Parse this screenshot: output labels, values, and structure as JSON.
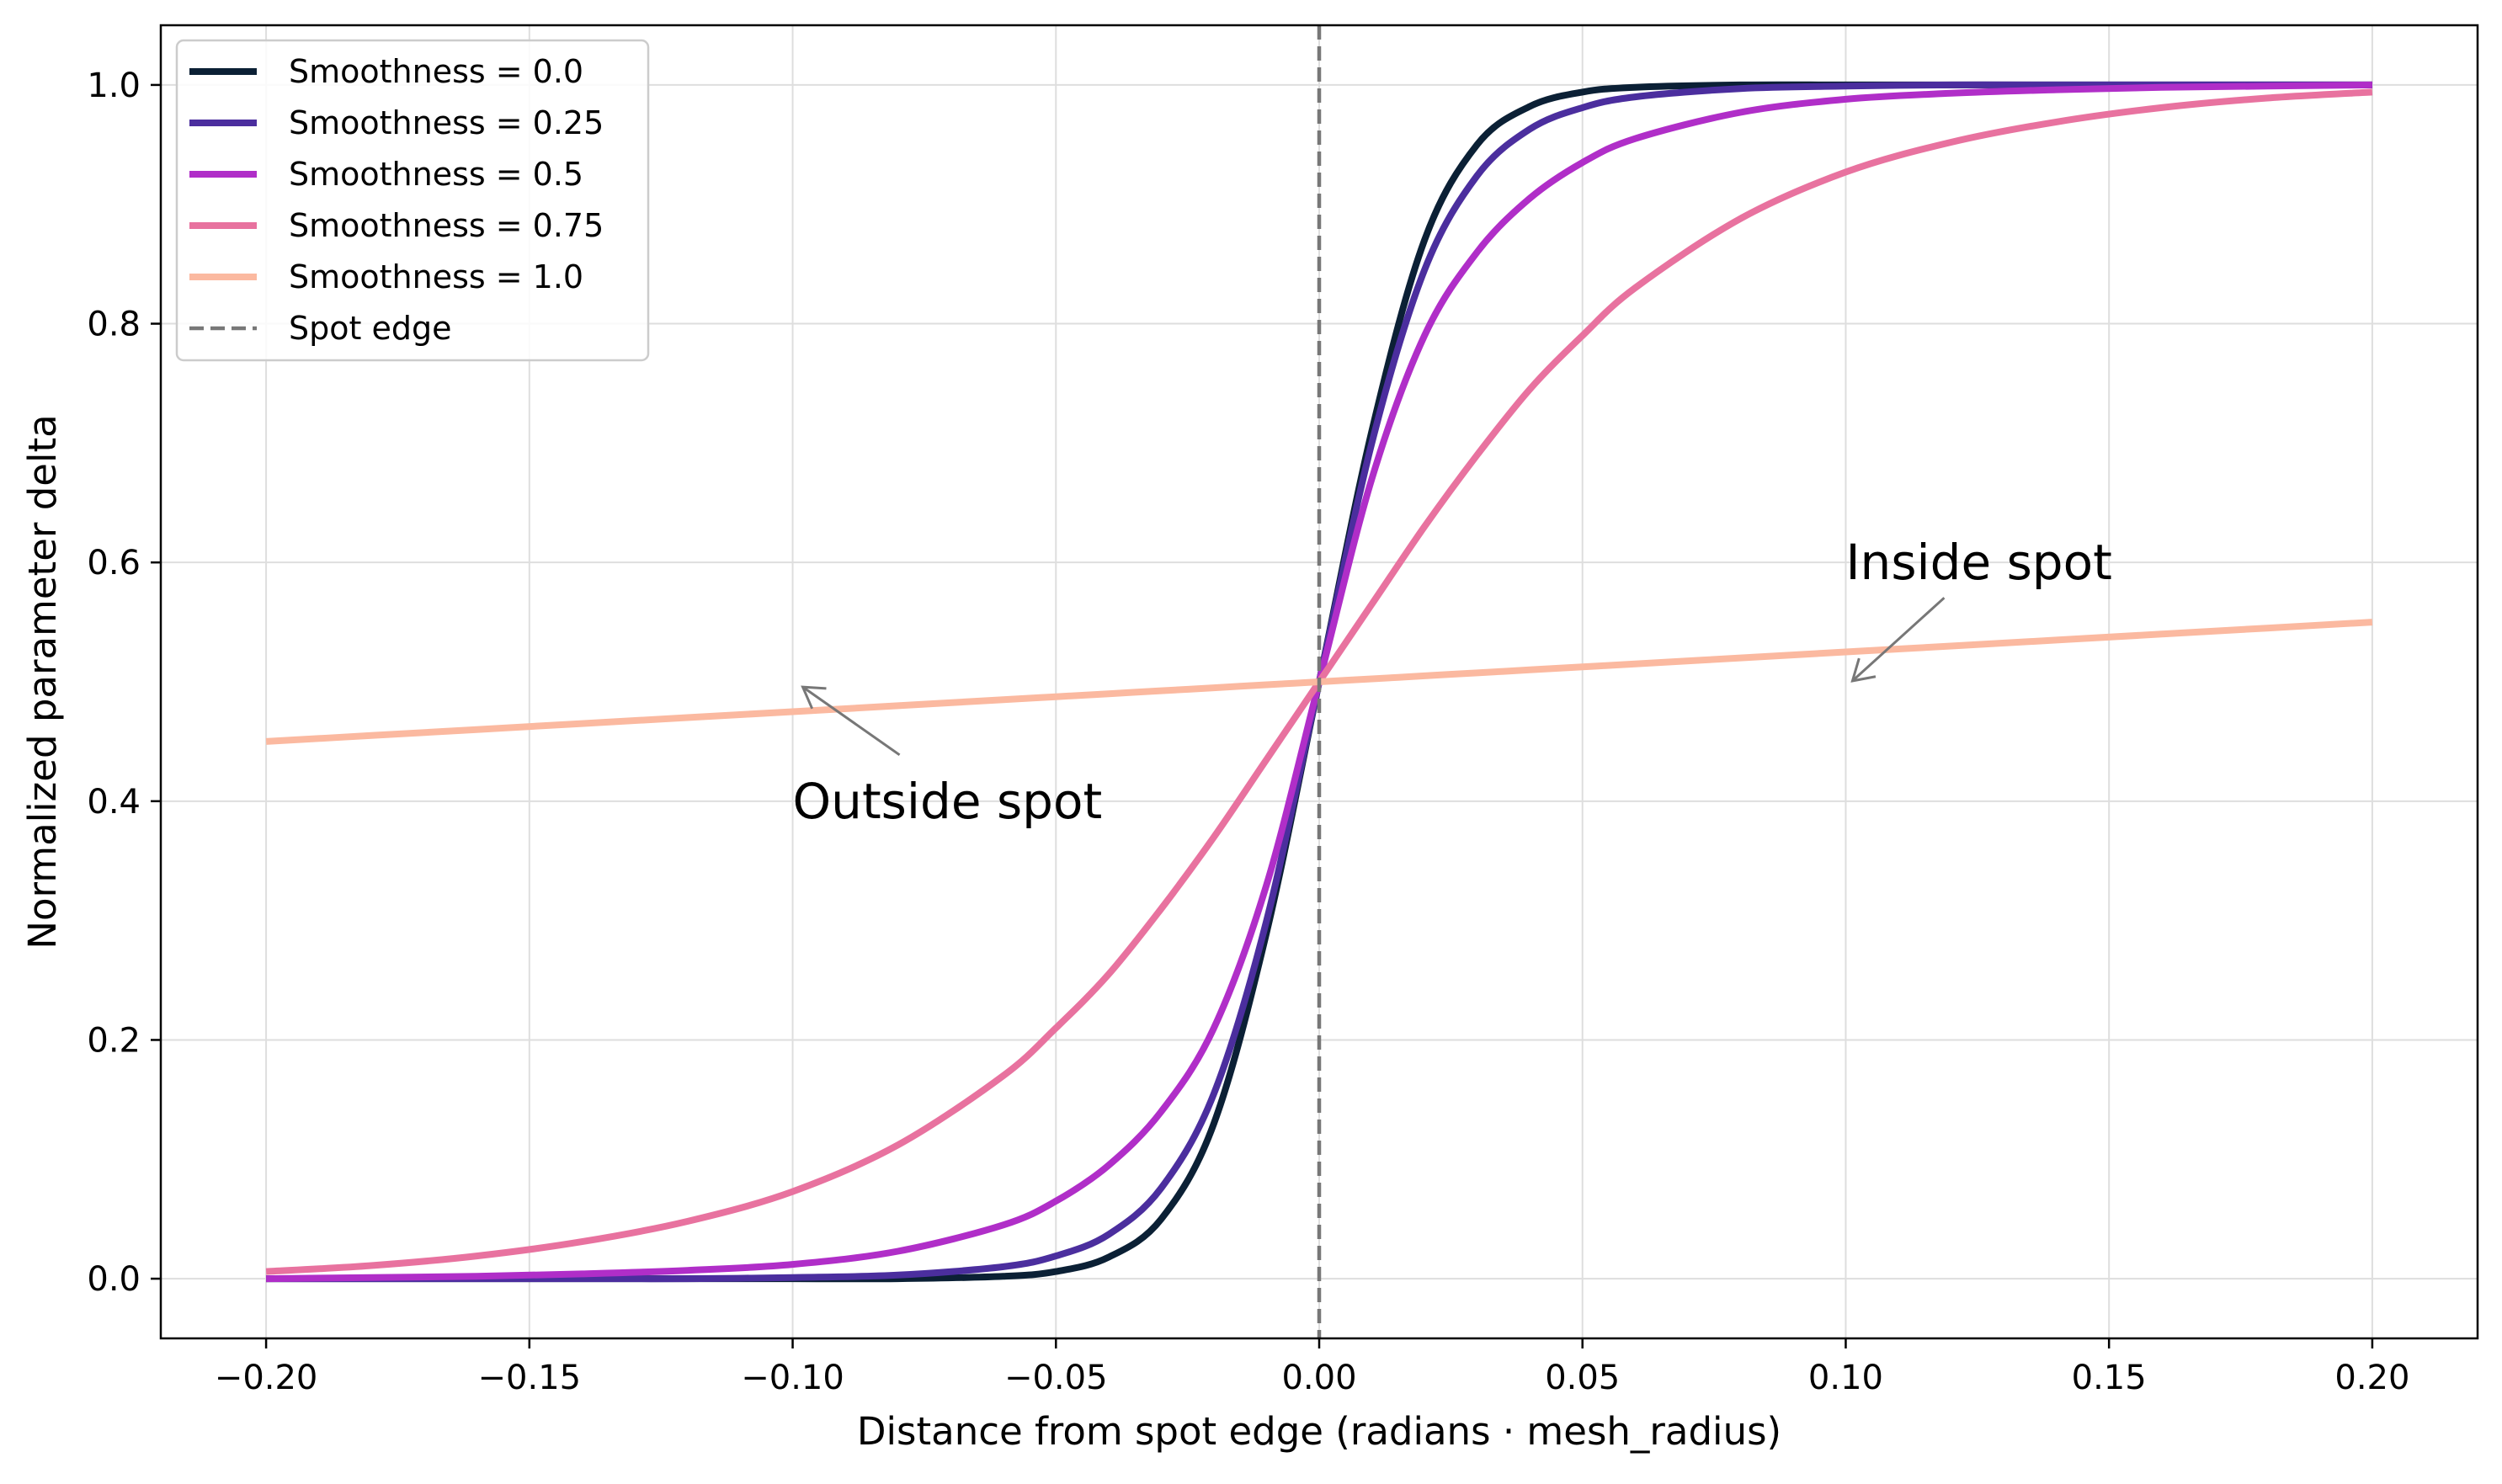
{
  "chart_data": {
    "type": "line",
    "title": "",
    "xlabel": "Distance from spot edge (radians · mesh_radius)",
    "ylabel": "Normalized parameter delta",
    "xlim": [
      -0.22,
      0.22
    ],
    "ylim": [
      -0.05,
      1.05
    ],
    "x_ticks": [
      -0.2,
      -0.15,
      -0.1,
      -0.05,
      0.0,
      0.05,
      0.1,
      0.15,
      0.2
    ],
    "x_tick_labels": [
      "−0.20",
      "−0.15",
      "−0.10",
      "−0.05",
      "0.00",
      "0.05",
      "0.10",
      "0.15",
      "0.20"
    ],
    "y_ticks": [
      0.0,
      0.2,
      0.4,
      0.6,
      0.8,
      1.0
    ],
    "y_tick_labels": [
      "0.0",
      "0.2",
      "0.4",
      "0.6",
      "0.8",
      "1.0"
    ],
    "grid": true,
    "legend_position": "top-left",
    "x": [
      -0.2,
      -0.18,
      -0.16,
      -0.14,
      -0.12,
      -0.1,
      -0.08,
      -0.06,
      -0.05,
      -0.04,
      -0.03,
      -0.02,
      -0.01,
      0.0,
      0.01,
      0.02,
      0.03,
      0.04,
      0.05,
      0.06,
      0.08,
      0.1,
      0.12,
      0.14,
      0.16,
      0.18,
      0.2
    ],
    "series": [
      {
        "name": "Smoothness = 0.0",
        "color": "#0b2035",
        "values": [
          0.0,
          0.0,
          0.0,
          0.0,
          0.0,
          0.0,
          0.0,
          0.002,
          0.006,
          0.018,
          0.05,
          0.13,
          0.29,
          0.5,
          0.71,
          0.87,
          0.95,
          0.982,
          0.994,
          0.998,
          1.0,
          1.0,
          1.0,
          1.0,
          1.0,
          1.0,
          1.0
        ]
      },
      {
        "name": "Smoothness = 0.25",
        "color": "#4b2e9e",
        "values": [
          0.0,
          0.0,
          0.0,
          0.0,
          0.0,
          0.001,
          0.003,
          0.01,
          0.019,
          0.037,
          0.076,
          0.155,
          0.3,
          0.5,
          0.7,
          0.845,
          0.924,
          0.963,
          0.981,
          0.99,
          0.997,
          0.999,
          1.0,
          1.0,
          1.0,
          1.0,
          1.0
        ]
      },
      {
        "name": "Smoothness = 0.5",
        "color": "#b02ec8",
        "values": [
          0.0,
          0.001,
          0.002,
          0.004,
          0.007,
          0.012,
          0.023,
          0.045,
          0.065,
          0.095,
          0.14,
          0.21,
          0.33,
          0.5,
          0.67,
          0.79,
          0.86,
          0.905,
          0.935,
          0.955,
          0.977,
          0.988,
          0.993,
          0.996,
          0.998,
          0.999,
          1.0
        ]
      },
      {
        "name": "Smoothness = 0.75",
        "color": "#e8729f",
        "values": [
          0.006,
          0.011,
          0.019,
          0.031,
          0.048,
          0.073,
          0.112,
          0.17,
          0.21,
          0.255,
          0.31,
          0.37,
          0.435,
          0.5,
          0.565,
          0.63,
          0.69,
          0.745,
          0.79,
          0.83,
          0.888,
          0.927,
          0.952,
          0.969,
          0.981,
          0.989,
          0.994
        ]
      },
      {
        "name": "Smoothness = 1.0",
        "color": "#fbb9a0",
        "values": [
          0.45,
          0.455,
          0.46,
          0.465,
          0.47,
          0.475,
          0.48,
          0.485,
          0.4875,
          0.49,
          0.4925,
          0.495,
          0.4975,
          0.5,
          0.5025,
          0.505,
          0.5075,
          0.51,
          0.5125,
          0.515,
          0.52,
          0.525,
          0.53,
          0.535,
          0.54,
          0.545,
          0.55
        ]
      }
    ],
    "reference_lines": [
      {
        "name": "Spot edge",
        "orientation": "vertical",
        "x": 0.0,
        "color": "#777777",
        "style": "dashed"
      }
    ],
    "annotations": [
      {
        "text": "Outside spot",
        "text_x": -0.1,
        "text_y": 0.4,
        "arrow_x": -0.1,
        "arrow_y": 0.495
      },
      {
        "text": "Inside spot",
        "text_x": 0.1,
        "text_y": 0.6,
        "arrow_x": 0.1,
        "arrow_y": 0.505
      }
    ]
  }
}
